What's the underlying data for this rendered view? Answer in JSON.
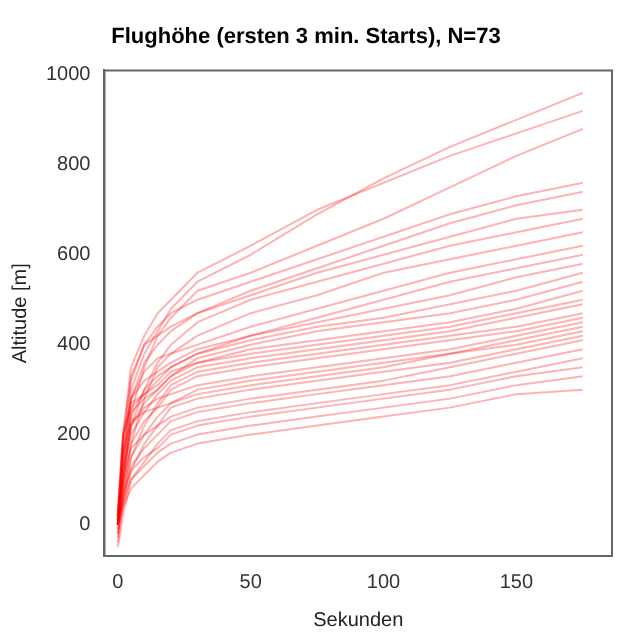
{
  "chart_data": {
    "type": "line",
    "title": "Flughöhe (ersten 3 min. Starts), N=73",
    "xlabel": "Sekunden",
    "ylabel": "Altitude [m]",
    "x": [
      0,
      2,
      5,
      10,
      15,
      20,
      30,
      50,
      75,
      100,
      125,
      150,
      175
    ],
    "xlim": [
      -5,
      186
    ],
    "ylim": [
      -70,
      1010
    ],
    "xticks": [
      0,
      50,
      100,
      150
    ],
    "yticks": [
      0,
      200,
      400,
      600,
      800,
      1000
    ],
    "grid": false,
    "legend": false,
    "marker": "none",
    "line_style": "solid",
    "series": [
      {
        "color": "#ff0000",
        "values": [
          0,
          150,
          300,
          380,
          430,
          480,
          540,
          600,
          690,
          770,
          840,
          900,
          960
        ]
      },
      {
        "color": "#ff0000",
        "values": [
          20,
          200,
          350,
          420,
          470,
          500,
          560,
          620,
          700,
          760,
          820,
          870,
          920
        ]
      },
      {
        "color": "#ff0000",
        "values": [
          -30,
          80,
          250,
          350,
          420,
          460,
          520,
          560,
          620,
          680,
          750,
          820,
          880
        ]
      },
      {
        "color": "#ff0000",
        "values": [
          10,
          180,
          320,
          400,
          440,
          470,
          500,
          540,
          590,
          640,
          690,
          730,
          760
        ]
      },
      {
        "color": "#ff0000",
        "values": [
          0,
          120,
          280,
          360,
          400,
          430,
          470,
          520,
          570,
          620,
          670,
          710,
          740
        ]
      },
      {
        "color": "#ff0000",
        "values": [
          30,
          200,
          330,
          400,
          420,
          440,
          470,
          510,
          560,
          600,
          640,
          680,
          700
        ]
      },
      {
        "color": "#ff0000",
        "values": [
          0,
          100,
          220,
          300,
          360,
          400,
          450,
          500,
          540,
          580,
          620,
          650,
          680
        ]
      },
      {
        "color": "#ff0000",
        "values": [
          -20,
          60,
          180,
          280,
          350,
          380,
          420,
          470,
          510,
          560,
          590,
          620,
          650
        ]
      },
      {
        "color": "#ff0000",
        "values": [
          10,
          150,
          280,
          340,
          370,
          380,
          400,
          440,
          480,
          520,
          560,
          590,
          620
        ]
      },
      {
        "color": "#ff0000",
        "values": [
          0,
          120,
          240,
          300,
          330,
          350,
          380,
          420,
          460,
          500,
          540,
          570,
          600
        ]
      },
      {
        "color": "#ff0000",
        "values": [
          0,
          180,
          280,
          320,
          340,
          360,
          390,
          420,
          450,
          480,
          510,
          550,
          580
        ]
      },
      {
        "color": "#ff0000",
        "values": [
          20,
          200,
          260,
          290,
          320,
          350,
          380,
          410,
          440,
          460,
          490,
          520,
          560
        ]
      },
      {
        "color": "#ff0000",
        "values": [
          0,
          150,
          250,
          280,
          300,
          330,
          370,
          400,
          430,
          450,
          470,
          500,
          540
        ]
      },
      {
        "color": "#ff0000",
        "values": [
          -10,
          100,
          220,
          270,
          300,
          330,
          360,
          390,
          410,
          430,
          450,
          480,
          520
        ]
      },
      {
        "color": "#ff0000",
        "values": [
          0,
          200,
          270,
          290,
          310,
          340,
          360,
          380,
          400,
          420,
          440,
          470,
          500
        ]
      },
      {
        "color": "#ff0000",
        "values": [
          10,
          120,
          200,
          250,
          290,
          320,
          350,
          370,
          390,
          410,
          430,
          460,
          490
        ]
      },
      {
        "color": "#ff0000",
        "values": [
          -40,
          50,
          150,
          220,
          270,
          310,
          340,
          360,
          380,
          400,
          420,
          440,
          470
        ]
      },
      {
        "color": "#ff0000",
        "values": [
          0,
          90,
          180,
          230,
          260,
          300,
          330,
          350,
          370,
          390,
          410,
          430,
          460
        ]
      },
      {
        "color": "#ff0000",
        "values": [
          0,
          130,
          220,
          260,
          280,
          290,
          310,
          330,
          350,
          370,
          390,
          420,
          450
        ]
      },
      {
        "color": "#ff0000",
        "values": [
          20,
          160,
          230,
          250,
          260,
          270,
          290,
          310,
          330,
          350,
          380,
          410,
          440
        ]
      },
      {
        "color": "#ff0000",
        "values": [
          0,
          80,
          150,
          200,
          240,
          270,
          300,
          320,
          340,
          360,
          380,
          400,
          430
        ]
      },
      {
        "color": "#ff0000",
        "values": [
          -20,
          40,
          120,
          180,
          220,
          260,
          280,
          300,
          320,
          340,
          360,
          390,
          420
        ]
      },
      {
        "color": "#ff0000",
        "values": [
          0,
          100,
          170,
          200,
          220,
          240,
          260,
          280,
          300,
          320,
          350,
          380,
          410
        ]
      },
      {
        "color": "#ff0000",
        "values": [
          0,
          60,
          130,
          170,
          200,
          230,
          250,
          270,
          290,
          310,
          330,
          360,
          390
        ]
      },
      {
        "color": "#ff0000",
        "values": [
          -50,
          20,
          100,
          140,
          180,
          210,
          230,
          250,
          270,
          290,
          310,
          340,
          370
        ]
      },
      {
        "color": "#ff0000",
        "values": [
          0,
          70,
          120,
          150,
          170,
          200,
          220,
          240,
          260,
          280,
          300,
          330,
          350
        ]
      },
      {
        "color": "#ff0000",
        "values": [
          10,
          50,
          100,
          130,
          160,
          180,
          200,
          220,
          240,
          260,
          280,
          310,
          330
        ]
      },
      {
        "color": "#ff0000",
        "values": [
          0,
          40,
          80,
          110,
          140,
          160,
          180,
          200,
          220,
          240,
          260,
          290,
          300
        ]
      }
    ]
  }
}
